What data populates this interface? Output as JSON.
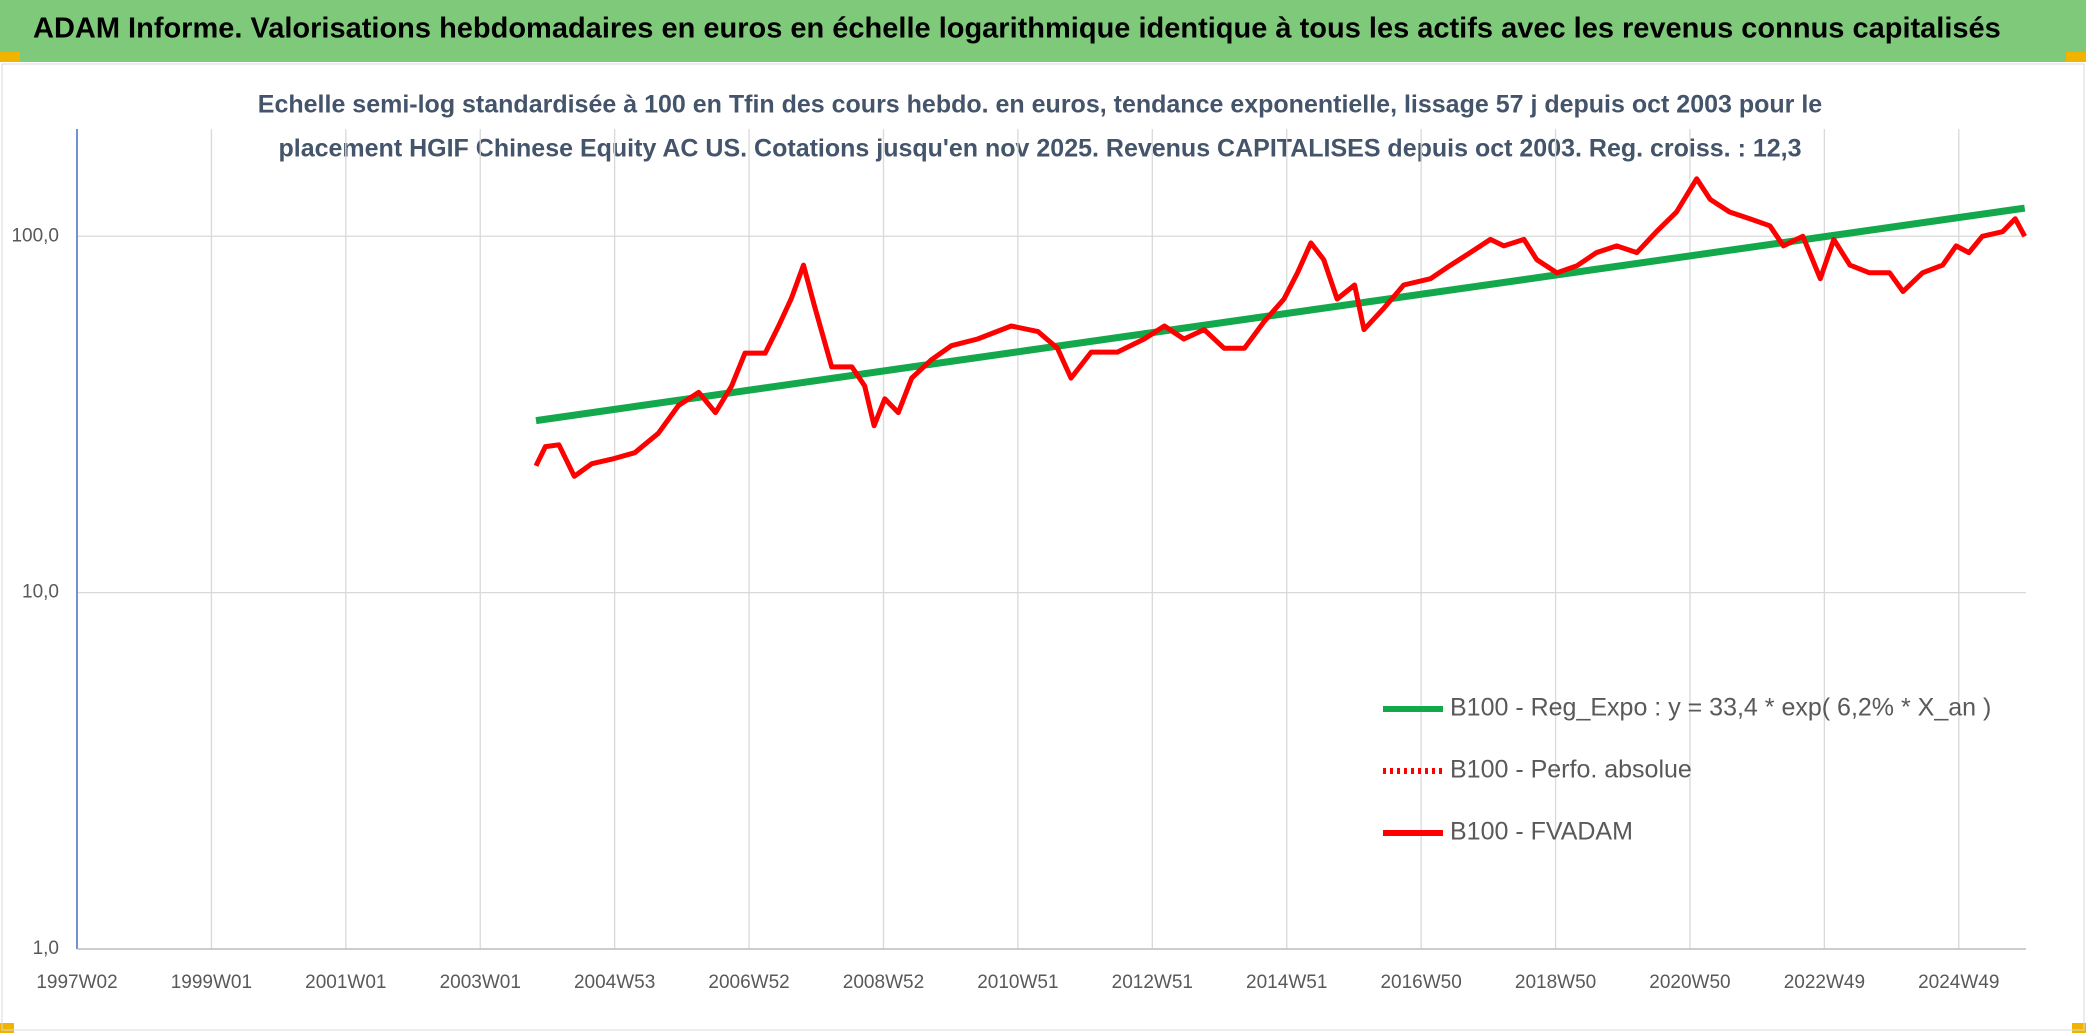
{
  "header": {
    "title": "ADAM Informe. Valorisations hebdomadaires en euros en échelle logarithmique identique à tous les actifs avec les revenus connus capitalisés"
  },
  "chart_data": {
    "type": "line",
    "title": [
      "Echelle semi-log standardisée à 100 en Tfin des cours hebdo. en euros, tendance exponentielle, lissage 57 j depuis oct 2003 pour le",
      "placement HGIF Chinese Equity AC US. Cotations jusqu'en nov 2025. Revenus CAPITALISES depuis oct 2003. Reg. croiss. : 12,3"
    ],
    "log_scale": true,
    "grid": true,
    "legend": "lower right",
    "xlim": [
      1997,
      2026
    ],
    "xticks": [
      {
        "value": 1997,
        "label": "1997W02"
      },
      {
        "value": 1999,
        "label": "1999W01"
      },
      {
        "value": 2001,
        "label": "2001W01"
      },
      {
        "value": 2003,
        "label": "2003W01"
      },
      {
        "value": 2005,
        "label": "2004W53"
      },
      {
        "value": 2007,
        "label": "2006W52"
      },
      {
        "value": 2009,
        "label": "2008W52"
      },
      {
        "value": 2011,
        "label": "2010W51"
      },
      {
        "value": 2013,
        "label": "2012W51"
      },
      {
        "value": 2015,
        "label": "2014W51"
      },
      {
        "value": 2017,
        "label": "2016W50"
      },
      {
        "value": 2019,
        "label": "2018W50"
      },
      {
        "value": 2021,
        "label": "2020W50"
      },
      {
        "value": 2023,
        "label": "2022W49"
      },
      {
        "value": 2025,
        "label": "2024W49"
      }
    ],
    "ylim": [
      1,
      200
    ],
    "yticks": [
      {
        "value": 1,
        "label": "1,0"
      },
      {
        "value": 10,
        "label": "10,0"
      },
      {
        "value": 100,
        "label": "100,0"
      }
    ],
    "series": [
      {
        "name": "B100 - Reg_Expo : y = 33,4 * exp( 6,2% *  X_an )",
        "color": "#13a84b",
        "style": "solid",
        "x": [
          2003.83,
          2025.98
        ],
        "values": [
          30.4,
          120
        ]
      },
      {
        "name": "B100 - Perfo. absolue",
        "color": "#ff0000",
        "style": "dotted",
        "x": [],
        "values": []
      },
      {
        "name": "B100 - FVADAM",
        "color": "#ff0000",
        "style": "solid",
        "x": [
          2003.83,
          2003.97,
          2004.17,
          2004.4,
          2004.66,
          2004.96,
          2005.3,
          2005.65,
          2005.95,
          2006.25,
          2006.5,
          2006.74,
          2006.94,
          2007.24,
          2007.44,
          2007.63,
          2007.81,
          2007.97,
          2008.23,
          2008.53,
          2008.72,
          2008.86,
          2009.02,
          2009.22,
          2009.42,
          2009.71,
          2010.01,
          2010.4,
          2010.9,
          2011.3,
          2011.59,
          2011.79,
          2012.09,
          2012.48,
          2012.88,
          2013.18,
          2013.47,
          2013.77,
          2014.07,
          2014.37,
          2014.66,
          2014.96,
          2015.16,
          2015.36,
          2015.55,
          2015.75,
          2016.01,
          2016.15,
          2016.45,
          2016.74,
          2017.14,
          2017.44,
          2017.73,
          2018.03,
          2018.23,
          2018.53,
          2018.72,
          2019.02,
          2019.32,
          2019.61,
          2019.91,
          2020.21,
          2020.5,
          2020.8,
          2021.1,
          2021.3,
          2021.59,
          2021.89,
          2022.19,
          2022.39,
          2022.68,
          2022.94,
          2023.14,
          2023.38,
          2023.67,
          2023.97,
          2024.17,
          2024.46,
          2024.76,
          2024.96,
          2025.15,
          2025.35,
          2025.65,
          2025.84,
          2025.98
        ],
        "values": [
          22.7,
          25.7,
          26,
          21.2,
          23,
          23.7,
          24.7,
          28,
          33.5,
          36.5,
          32,
          38,
          47,
          47,
          56,
          67,
          83,
          64,
          43,
          43,
          38,
          29.4,
          35,
          32,
          40,
          45,
          49.3,
          51.5,
          56,
          54,
          48.5,
          40,
          47.3,
          47.3,
          51.5,
          56,
          51.5,
          54.7,
          48.5,
          48.5,
          57.5,
          66.7,
          79,
          95.8,
          86,
          66.7,
          73,
          54.7,
          63,
          73,
          76,
          83,
          90,
          98,
          94,
          98,
          86,
          79,
          82.7,
          90,
          94,
          90,
          103,
          117,
          145,
          127,
          117,
          112,
          107,
          94,
          100,
          76,
          98,
          83,
          79,
          79,
          70,
          79,
          83,
          94,
          90,
          100,
          103,
          112,
          100
        ]
      }
    ]
  }
}
